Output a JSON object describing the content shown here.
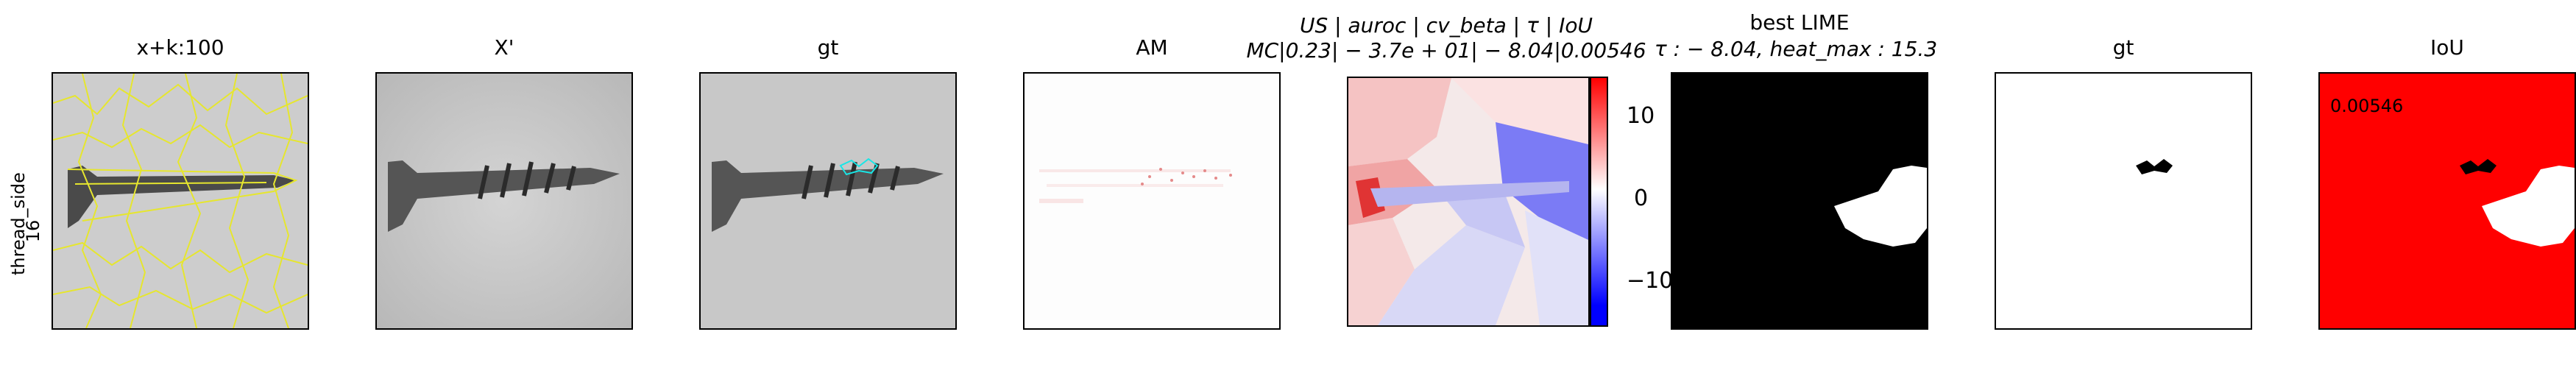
{
  "row_label": {
    "line1": "thread_side",
    "line2": "16"
  },
  "panels": [
    {
      "title": "x+k:100"
    },
    {
      "title": "X'"
    },
    {
      "title": "gt"
    },
    {
      "title": "AM"
    },
    {
      "title_line1": "US | auroc | cv_beta | τ | IoU",
      "title_line2": "MC|0.23| − 3.7e + 01| − 8.04|0.00546"
    },
    {
      "title_line1": "best LIME",
      "title_line2": "τ : − 8.04, heat_max : 15.3"
    },
    {
      "title": "gt"
    },
    {
      "title": "IoU",
      "value_label": "0.00546"
    }
  ],
  "colorbar": {
    "ticks": [
      "10",
      "0",
      "−10"
    ],
    "colormap": "bwr"
  },
  "colors": {
    "segment_lines": "#e6e62e",
    "gt_outline": "#19e6e6",
    "iou_background": "#ff0000"
  }
}
